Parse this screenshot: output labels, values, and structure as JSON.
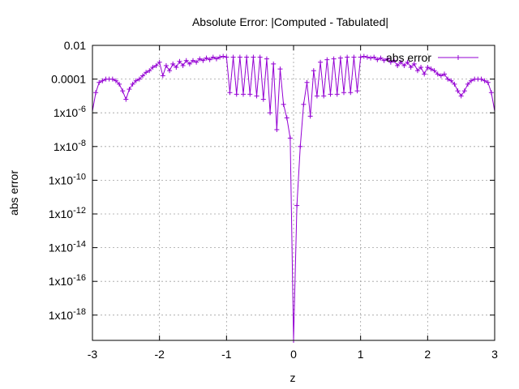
{
  "chart_data": {
    "type": "line",
    "title": "Absolute Error: |Computed - Tabulated|",
    "xlabel": "z",
    "ylabel": "abs error",
    "xlim": [
      -3,
      3
    ],
    "ylim_log10": [
      -19.5,
      -2
    ],
    "log_scale_y": true,
    "grid": true,
    "legend_placement": "top-right",
    "x_ticks": [
      {
        "value": -3,
        "label": "-3"
      },
      {
        "value": -2,
        "label": "-2"
      },
      {
        "value": -1,
        "label": "-1"
      },
      {
        "value": 0,
        "label": "0"
      },
      {
        "value": 1,
        "label": "1"
      },
      {
        "value": 2,
        "label": "2"
      },
      {
        "value": 3,
        "label": "3"
      }
    ],
    "y_ticks": [
      {
        "exp": -2,
        "base": "0.01",
        "sup": ""
      },
      {
        "exp": -4,
        "base": "0.0001",
        "sup": ""
      },
      {
        "exp": -6,
        "base": "1x10",
        "sup": "-6"
      },
      {
        "exp": -8,
        "base": "1x10",
        "sup": "-8"
      },
      {
        "exp": -10,
        "base": "1x10",
        "sup": "-10"
      },
      {
        "exp": -12,
        "base": "1x10",
        "sup": "-12"
      },
      {
        "exp": -14,
        "base": "1x10",
        "sup": "-14"
      },
      {
        "exp": -16,
        "base": "1x10",
        "sup": "-16"
      },
      {
        "exp": -18,
        "base": "1x10",
        "sup": "-18"
      }
    ],
    "series": [
      {
        "name": "abs error",
        "color": "#9400d3",
        "x": [
          -2.95,
          -2.9,
          -2.85,
          -2.8,
          -2.75,
          -2.7,
          -2.65,
          -2.6,
          -2.55,
          -2.5,
          -2.45,
          -2.4,
          -2.35,
          -2.3,
          -2.25,
          -2.2,
          -2.15,
          -2.1,
          -2.05,
          -2.0,
          -1.95,
          -1.9,
          -1.85,
          -1.8,
          -1.75,
          -1.7,
          -1.65,
          -1.6,
          -1.55,
          -1.5,
          -1.45,
          -1.4,
          -1.35,
          -1.3,
          -1.25,
          -1.2,
          -1.15,
          -1.1,
          -1.05,
          -1.0,
          -0.95,
          -0.9,
          -0.85,
          -0.8,
          -0.75,
          -0.7,
          -0.65,
          -0.6,
          -0.55,
          -0.5,
          -0.45,
          -0.4,
          -0.35,
          -0.3,
          -0.25,
          -0.2,
          -0.15,
          -0.1,
          -0.05,
          0.0,
          0.05,
          0.1,
          0.15,
          0.2,
          0.25,
          0.3,
          0.35,
          0.4,
          0.45,
          0.5,
          0.55,
          0.6,
          0.65,
          0.7,
          0.75,
          0.8,
          0.85,
          0.9,
          0.95,
          1.0,
          1.05,
          1.1,
          1.15,
          1.2,
          1.25,
          1.3,
          1.35,
          1.4,
          1.45,
          1.5,
          1.55,
          1.6,
          1.65,
          1.7,
          1.75,
          1.8,
          1.85,
          1.9,
          1.95,
          2.0,
          2.05,
          2.1,
          2.15,
          2.2,
          2.25,
          2.3,
          2.35,
          2.4,
          2.45,
          2.5,
          2.55,
          2.6,
          2.65,
          2.7,
          2.75,
          2.8,
          2.85,
          2.9,
          2.95
        ],
        "log10_y": [
          -4.8,
          -4.2,
          -4.1,
          -4.0,
          -4.0,
          -4.0,
          -4.1,
          -4.3,
          -4.7,
          -5.2,
          -4.6,
          -4.3,
          -4.1,
          -4.0,
          -3.8,
          -3.6,
          -3.5,
          -3.3,
          -3.2,
          -3.0,
          -3.8,
          -3.2,
          -3.5,
          -3.1,
          -3.3,
          -2.95,
          -3.2,
          -2.9,
          -3.1,
          -2.9,
          -3.0,
          -2.8,
          -2.9,
          -2.75,
          -2.85,
          -2.7,
          -2.8,
          -2.7,
          -2.65,
          -2.7,
          -4.8,
          -2.7,
          -4.9,
          -2.7,
          -4.9,
          -2.7,
          -4.9,
          -2.7,
          -5.0,
          -2.7,
          -5.2,
          -2.8,
          -6.0,
          -3.1,
          -7.0,
          -3.4,
          -5.5,
          -6.3,
          -7.5,
          -19.5,
          -11.5,
          -8.0,
          -5.5,
          -4.2,
          -6.2,
          -3.5,
          -5.0,
          -3.0,
          -5.0,
          -2.85,
          -4.9,
          -2.8,
          -4.9,
          -2.75,
          -4.8,
          -2.7,
          -4.8,
          -2.7,
          -4.7,
          -2.7,
          -2.65,
          -2.7,
          -2.75,
          -2.7,
          -2.85,
          -2.75,
          -2.9,
          -2.8,
          -3.0,
          -2.9,
          -3.2,
          -3.0,
          -3.2,
          -3.0,
          -3.3,
          -3.1,
          -3.5,
          -3.3,
          -3.7,
          -3.3,
          -3.4,
          -3.5,
          -3.7,
          -3.8,
          -3.7,
          -4.0,
          -4.1,
          -4.3,
          -4.7,
          -5.0,
          -4.7,
          -4.3,
          -4.1,
          -4.0,
          -4.0,
          -4.0,
          -4.1,
          -4.2,
          -4.8
        ]
      }
    ]
  }
}
